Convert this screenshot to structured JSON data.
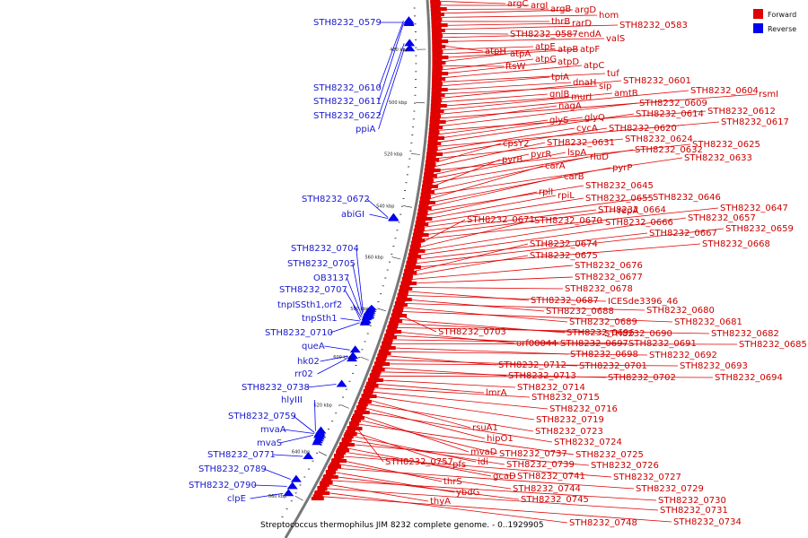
{
  "caption": "Streptococcus thermophilus JIM 8232 complete genome. - 0..1929905",
  "legend": [
    {
      "label": "Forward",
      "color": "#e00000"
    },
    {
      "label": "Reverse",
      "color": "#0000ee"
    }
  ],
  "colors": {
    "forward": "#e00000",
    "reverse": "#0000ee",
    "backbone": "#777777"
  },
  "scale_ticks": [
    {
      "label": "480 kbp",
      "kbp": 480
    },
    {
      "label": "500 kbp",
      "kbp": 500
    },
    {
      "label": "520 kbp",
      "kbp": 520
    },
    {
      "label": "540 kbp",
      "kbp": 540
    },
    {
      "label": "560 kbp",
      "kbp": 560
    },
    {
      "label": "580 kbp",
      "kbp": 580
    },
    {
      "label": "600 kbp",
      "kbp": 600
    },
    {
      "label": "620 kbp",
      "kbp": 620
    },
    {
      "label": "640 kbp",
      "kbp": 640
    },
    {
      "label": "660 kbp",
      "kbp": 660
    }
  ],
  "forward_genes": [
    "argC",
    "argI",
    "argB",
    "argD",
    "hom",
    "thrB",
    "rarD",
    "STH8232_0583",
    "STH8232_0587",
    "endA",
    "valS",
    "atpH",
    "atpE",
    "atpB",
    "atpF",
    "atpA",
    "ftsW",
    "atpG",
    "atpD",
    "atpC",
    "tuf",
    "tpiA",
    "dnaH",
    "sip",
    "STH8232_0601",
    "gnlB",
    "murI",
    "amtB",
    "STH8232_0604",
    "rsmI",
    "nagA",
    "STH8232_0609",
    "STH8232_0612",
    "glyS",
    "glyQ",
    "STH8232_0614",
    "STH8232_0617",
    "cycA",
    "STH8232_0620",
    "STH8232_0624",
    "cpsY2",
    "STH8232_0631",
    "STH8232_0625",
    "pyrR",
    "lspA",
    "STH8232_0632",
    "pyrB",
    "rluD",
    "STH8232_0633",
    "carA",
    "pyrP",
    "carB",
    "STH8232_0645",
    "rplI",
    "rpiL",
    "STH8232_0655",
    "STH8232_0646",
    "STH8232_0664",
    "repA",
    "STH8232_0647",
    "STH8232_0671",
    "STH8232_0670",
    "STH8232_0666",
    "STH8232_0657",
    "STH8232_0667",
    "STH8232_0659",
    "STH8232_0668",
    "STH8232_0674",
    "STH8232_0675",
    "STH8232_0676",
    "STH8232_0677",
    "STH8232_0678",
    "STH8232_0687",
    "ICESde3396_46",
    "STH8232_0688",
    "STH8232_0680",
    "STH8232_0689",
    "STH8232_0681",
    "STH8232_0703",
    "STH8232_0696",
    "STH8232_0690",
    "STH8232_0682",
    "orf00044",
    "STH8232_0697",
    "STH8232_0691",
    "STH8232_0685",
    "STH8232_0698",
    "STH8232_0692",
    "STH8232_0712",
    "STH8232_0701",
    "STH8232_0693",
    "STH8232_0713",
    "STH8232_0702",
    "STH8232_0694",
    "STH8232_0714",
    "lmrA",
    "STH8232_0715",
    "STH8232_0716",
    "STH8232_0719",
    "rsuA1",
    "STH8232_0723",
    "hipO1",
    "STH8232_0724",
    "mvaD",
    "STH8232_0737",
    "STH8232_0725",
    "STH8232_0757",
    "pfs",
    "idi",
    "STH8232_0739",
    "STH8232_0726",
    "gcaD",
    "STH8232_0741",
    "STH8232_0727",
    "thrS",
    "STH8232_0744",
    "STH8232_0729",
    "ybdG",
    "STH8232_0745",
    "STH8232_0730",
    "thyA",
    "STH8232_0731",
    "STH8232_0748",
    "STH8232_0734"
  ],
  "reverse_genes": [
    "STH8232_0579",
    "STH8232_0610",
    "STH8232_0611",
    "STH8232_0622",
    "ppiA",
    "STH8232_0672",
    "abiGI",
    "STH8232_0704",
    "STH8232_0705",
    "OB3137",
    "STH8232_0707",
    "tnpISSth1,orf2",
    "tnpSth1",
    "STH8232_0710",
    "queA",
    "hk02",
    "rr02",
    "STH8232_0738",
    "hlyIII",
    "STH8232_0759",
    "mvaA",
    "mvaS",
    "STH8232_0771",
    "STH8232_0789",
    "STH8232_0790",
    "clpE"
  ]
}
